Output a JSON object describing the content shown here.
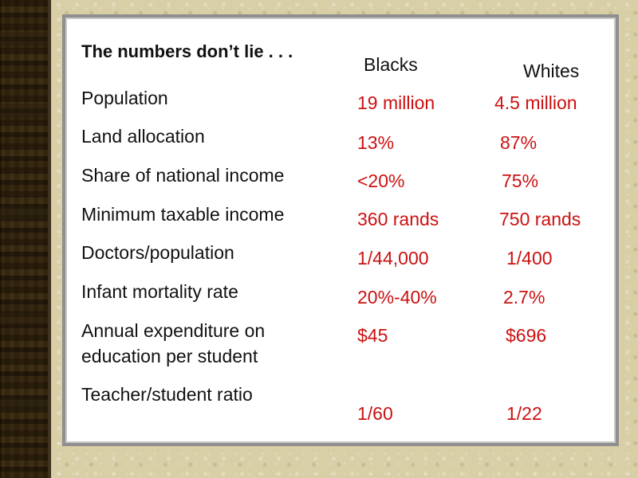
{
  "slide": {
    "title": "The numbers don’t lie . . .",
    "columns": [
      "Blacks",
      "Whites"
    ],
    "rows": [
      {
        "label": "Population",
        "blacks": "19 million",
        "whites": "4.5 million"
      },
      {
        "label": "Land allocation",
        "blacks": "13%",
        "whites": "87%"
      },
      {
        "label": "Share of national income",
        "blacks": "<20%",
        "whites": "75%"
      },
      {
        "label": "Minimum taxable income",
        "blacks": "360 rands",
        "whites": "750 rands"
      },
      {
        "label": "Doctors/population",
        "blacks": "1/44,000",
        "whites": "1/400"
      },
      {
        "label": "Infant mortality rate",
        "blacks": "20%-40%",
        "whites": "2.7%"
      },
      {
        "label": "Annual expenditure on education per student",
        "label_line1": "Annual expenditure on",
        "label_line2": "education per student",
        "blacks": "$45",
        "whites": "$696"
      },
      {
        "label": "Teacher/student ratio",
        "blacks": "1/60",
        "whites": "1/22"
      }
    ],
    "colors": {
      "value_text": "#cc1111",
      "label_text": "#111111",
      "panel_bg": "#ffffff",
      "panel_border": "#8f8f8f"
    }
  }
}
